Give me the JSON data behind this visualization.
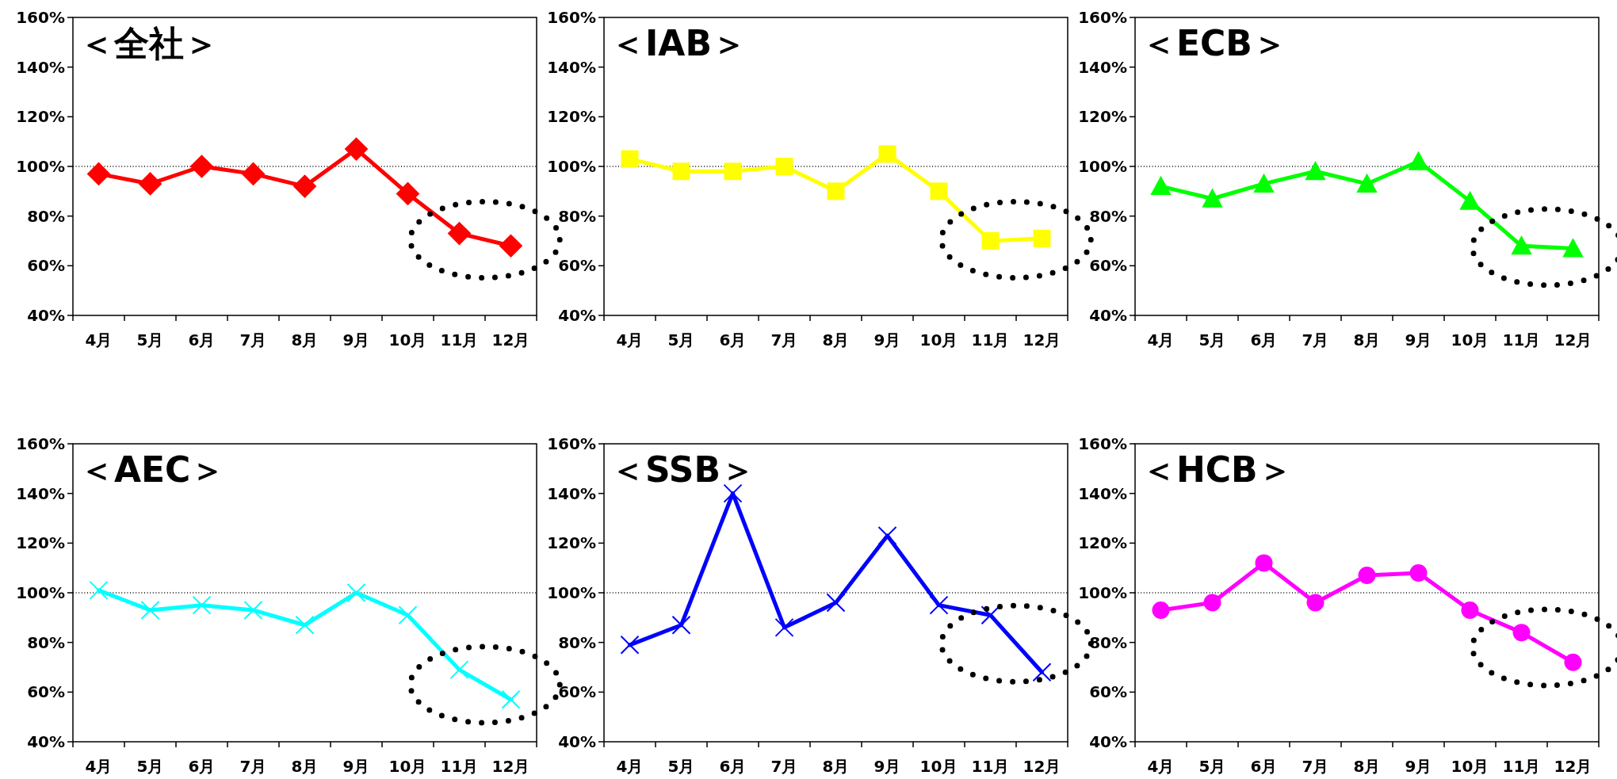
{
  "chart_data": [
    {
      "type": "line",
      "title": "＜全社＞",
      "categories": [
        "4月",
        "5月",
        "6月",
        "7月",
        "8月",
        "9月",
        "10月",
        "11月",
        "12月"
      ],
      "series": [
        {
          "color": "#ff0000",
          "values": [
            97,
            93,
            100,
            97,
            92,
            107,
            89,
            73,
            68
          ]
        }
      ],
      "marker": "diamond",
      "ylim": [
        40,
        160
      ],
      "yticks": [
        {
          "value": 40,
          "label": "40%"
        },
        {
          "value": 60,
          "label": "60%"
        },
        {
          "value": 80,
          "label": "80%"
        },
        {
          "value": 100,
          "label": "100%"
        },
        {
          "value": 120,
          "label": "120%"
        },
        {
          "value": 140,
          "label": "140%"
        },
        {
          "value": 160,
          "label": "160%"
        }
      ],
      "ref_lines": [
        {
          "axis": "y",
          "value": 100,
          "color": "#000000",
          "line_style": "dotted"
        }
      ],
      "grid": false
    },
    {
      "type": "line",
      "title": "＜IAB＞",
      "categories": [
        "4月",
        "5月",
        "6月",
        "7月",
        "8月",
        "9月",
        "10月",
        "11月",
        "12月"
      ],
      "series": [
        {
          "color": "#ffff00",
          "values": [
            103,
            98,
            98,
            100,
            90,
            105,
            90,
            70,
            71
          ]
        }
      ],
      "marker": "square",
      "ylim": [
        40,
        160
      ],
      "yticks": [
        {
          "value": 40,
          "label": "40%"
        },
        {
          "value": 60,
          "label": "60%"
        },
        {
          "value": 80,
          "label": "80%"
        },
        {
          "value": 100,
          "label": "100%"
        },
        {
          "value": 120,
          "label": "120%"
        },
        {
          "value": 140,
          "label": "140%"
        },
        {
          "value": 160,
          "label": "160%"
        }
      ],
      "ref_lines": [
        {
          "axis": "y",
          "value": 100,
          "color": "#000000",
          "line_style": "dotted"
        }
      ],
      "grid": false
    },
    {
      "type": "line",
      "title": "＜ECB＞",
      "categories": [
        "4月",
        "5月",
        "6月",
        "7月",
        "8月",
        "9月",
        "10月",
        "11月",
        "12月"
      ],
      "series": [
        {
          "color": "#00ff00",
          "values": [
            92,
            87,
            93,
            98,
            93,
            102,
            86,
            68,
            67
          ]
        }
      ],
      "marker": "triangle",
      "ylim": [
        40,
        160
      ],
      "yticks": [
        {
          "value": 40,
          "label": "40%"
        },
        {
          "value": 60,
          "label": "60%"
        },
        {
          "value": 80,
          "label": "80%"
        },
        {
          "value": 100,
          "label": "100%"
        },
        {
          "value": 120,
          "label": "120%"
        },
        {
          "value": 140,
          "label": "140%"
        },
        {
          "value": 160,
          "label": "160%"
        }
      ],
      "ref_lines": [
        {
          "axis": "y",
          "value": 100,
          "color": "#000000",
          "line_style": "dotted"
        }
      ],
      "grid": false
    },
    {
      "type": "line",
      "title": "＜AEC＞",
      "categories": [
        "4月",
        "5月",
        "6月",
        "7月",
        "8月",
        "9月",
        "10月",
        "11月",
        "12月"
      ],
      "series": [
        {
          "color": "#00ffff",
          "values": [
            101,
            93,
            95,
            93,
            87,
            100,
            91,
            69,
            57
          ]
        }
      ],
      "marker": "cross",
      "ylim": [
        40,
        160
      ],
      "yticks": [
        {
          "value": 40,
          "label": "40%"
        },
        {
          "value": 60,
          "label": "60%"
        },
        {
          "value": 80,
          "label": "80%"
        },
        {
          "value": 100,
          "label": "100%"
        },
        {
          "value": 120,
          "label": "120%"
        },
        {
          "value": 140,
          "label": "140%"
        },
        {
          "value": 160,
          "label": "160%"
        }
      ],
      "ref_lines": [
        {
          "axis": "y",
          "value": 100,
          "color": "#000000",
          "line_style": "dotted"
        }
      ],
      "grid": false
    },
    {
      "type": "line",
      "title": "＜SSB＞",
      "categories": [
        "4月",
        "5月",
        "6月",
        "7月",
        "8月",
        "9月",
        "10月",
        "11月",
        "12月"
      ],
      "series": [
        {
          "color": "#0000ff",
          "values": [
            79,
            87,
            140,
            86,
            96,
            123,
            95,
            91,
            68
          ]
        }
      ],
      "marker": "cross",
      "ylim": [
        40,
        160
      ],
      "yticks": [
        {
          "value": 40,
          "label": "40%"
        },
        {
          "value": 60,
          "label": "60%"
        },
        {
          "value": 80,
          "label": "80%"
        },
        {
          "value": 100,
          "label": "100%"
        },
        {
          "value": 120,
          "label": "120%"
        },
        {
          "value": 140,
          "label": "140%"
        },
        {
          "value": 160,
          "label": "160%"
        }
      ],
      "ref_lines": [
        {
          "axis": "y",
          "value": 100,
          "color": "#000000",
          "line_style": "dotted"
        }
      ],
      "grid": false
    },
    {
      "type": "line",
      "title": "＜HCB＞",
      "categories": [
        "4月",
        "5月",
        "6月",
        "7月",
        "8月",
        "9月",
        "10月",
        "11月",
        "12月"
      ],
      "series": [
        {
          "color": "#ff00ff",
          "values": [
            93,
            96,
            112,
            96,
            107,
            108,
            93,
            84,
            72
          ]
        }
      ],
      "marker": "circle",
      "ylim": [
        40,
        160
      ],
      "yticks": [
        {
          "value": 40,
          "label": "40%"
        },
        {
          "value": 60,
          "label": "60%"
        },
        {
          "value": 80,
          "label": "80%"
        },
        {
          "value": 100,
          "label": "100%"
        },
        {
          "value": 120,
          "label": "120%"
        },
        {
          "value": 140,
          "label": "140%"
        },
        {
          "value": 160,
          "label": "160%"
        }
      ],
      "ref_lines": [
        {
          "axis": "y",
          "value": 100,
          "color": "#000000",
          "line_style": "dotted"
        }
      ],
      "grid": false
    }
  ]
}
